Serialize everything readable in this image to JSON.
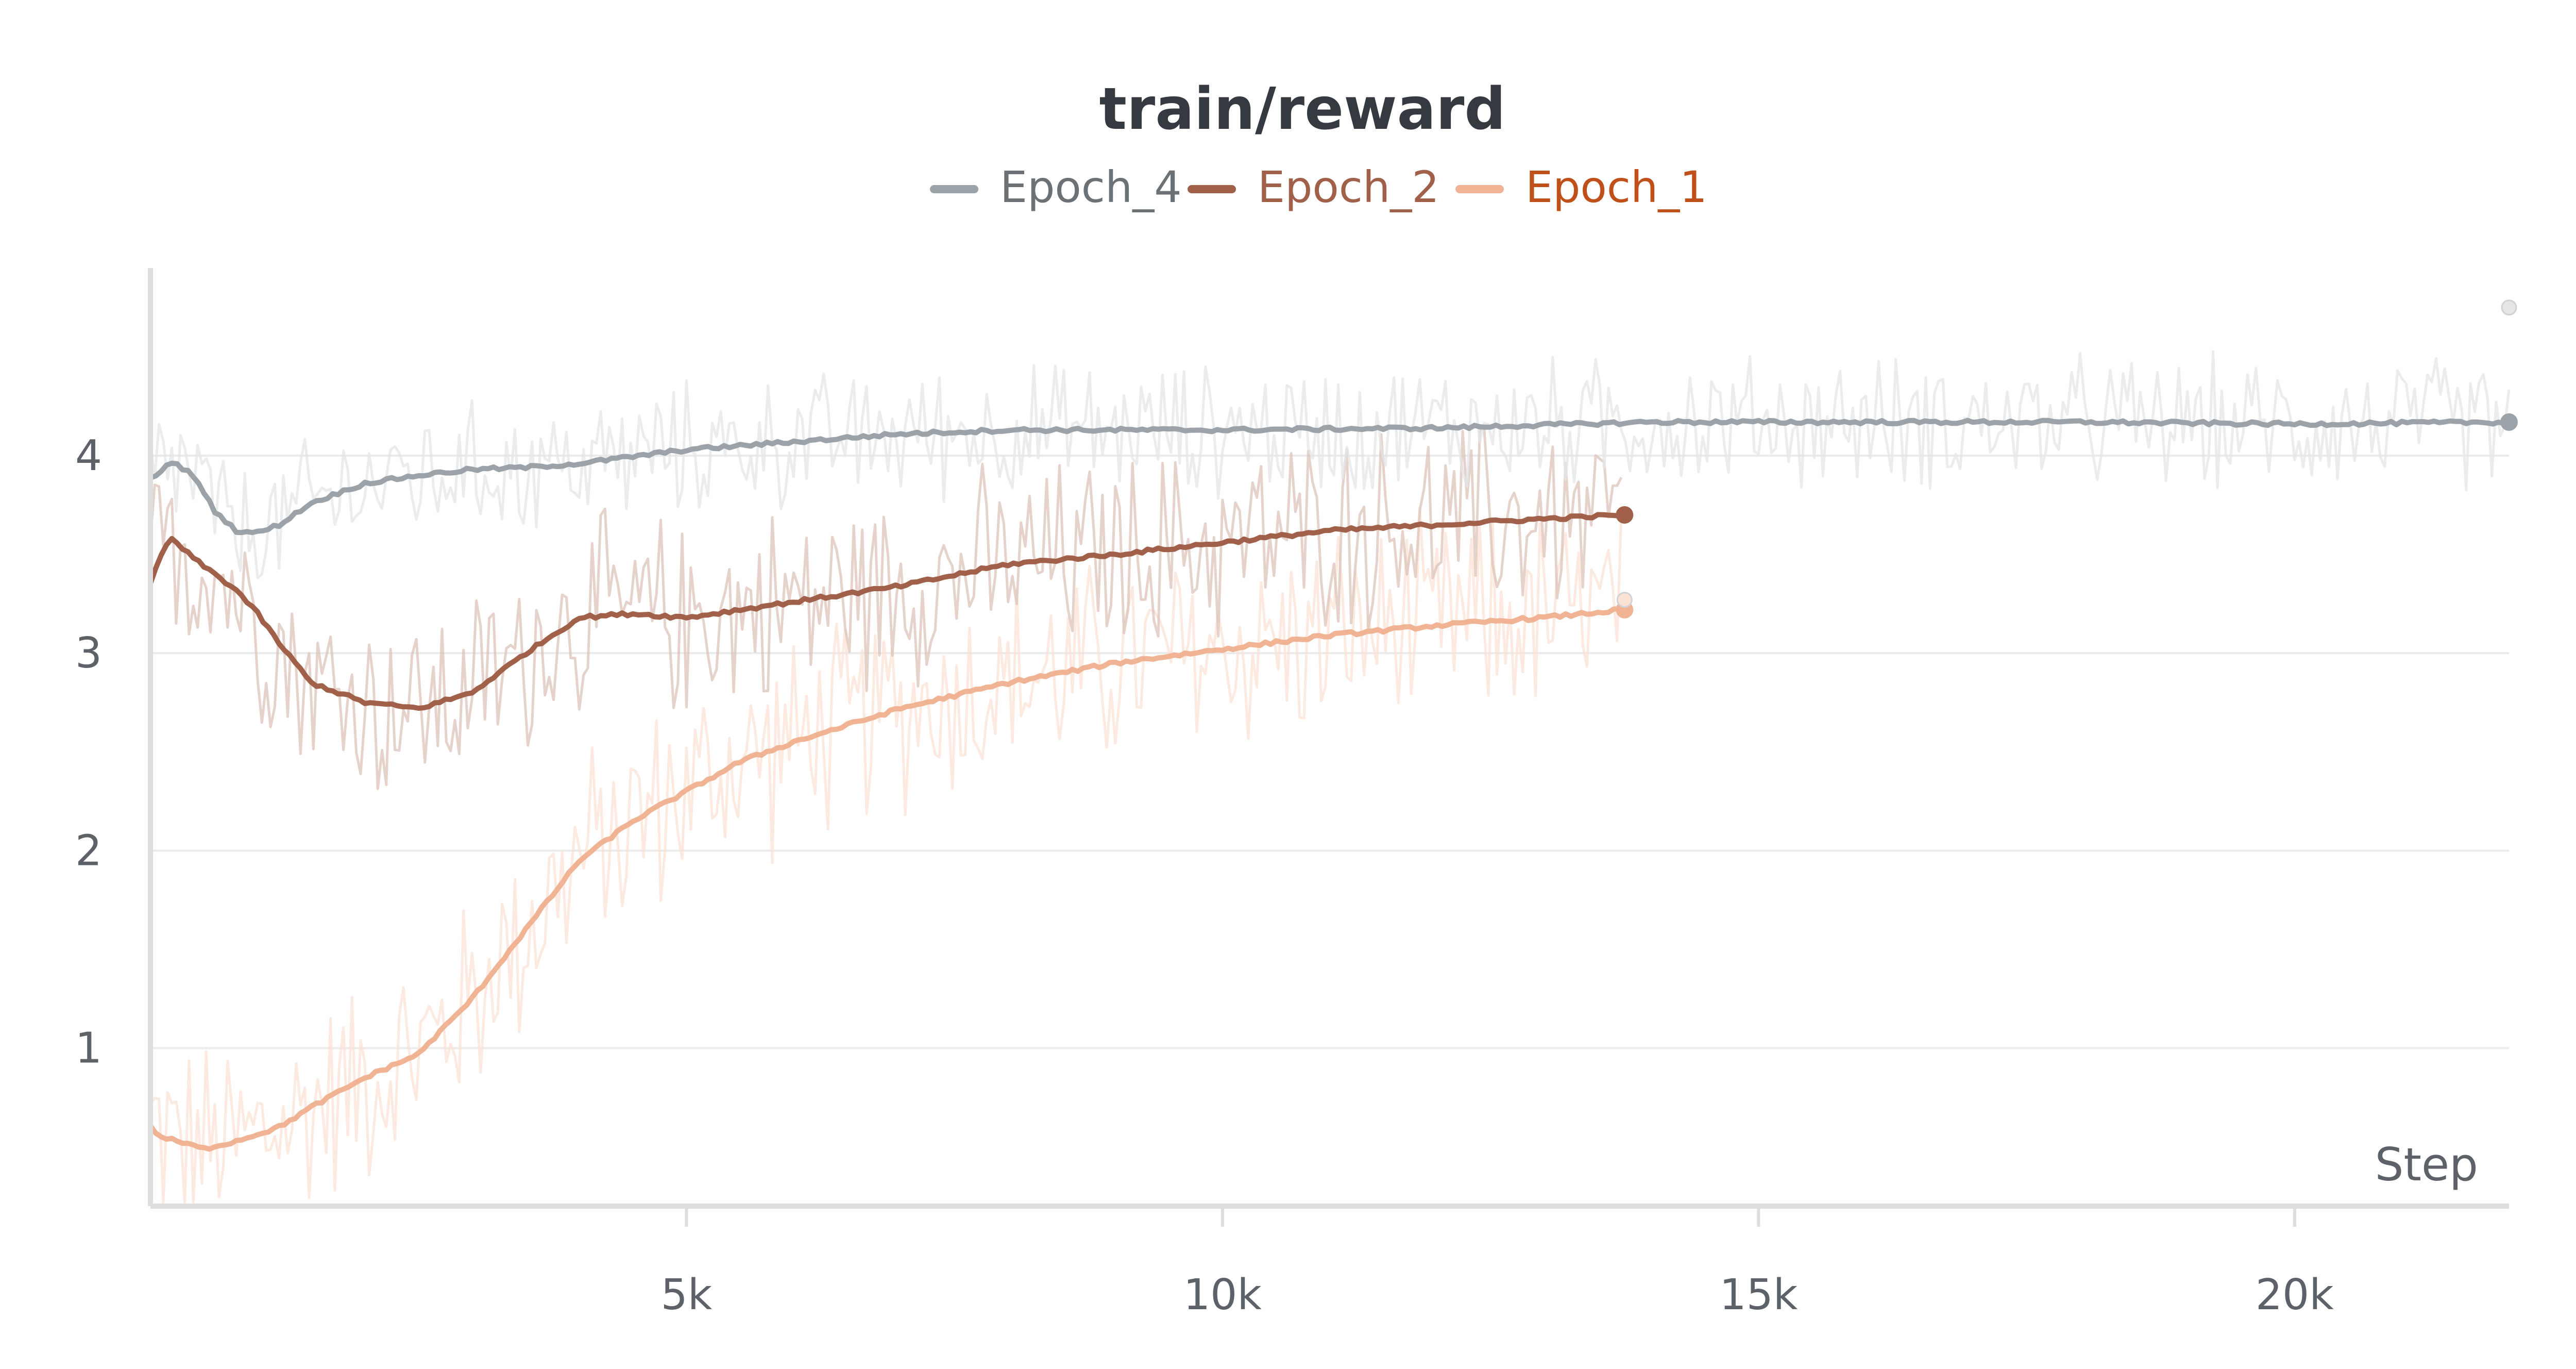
{
  "chart_data": {
    "type": "line",
    "title": "train/reward",
    "xlabel": "Step",
    "ylabel": "",
    "xlim": [
      0,
      22000
    ],
    "ylim": [
      0.2,
      4.95
    ],
    "xticks": [
      {
        "value": 5000,
        "label": "5k"
      },
      {
        "value": 10000,
        "label": "10k"
      },
      {
        "value": 15000,
        "label": "15k"
      },
      {
        "value": 20000,
        "label": "20k"
      }
    ],
    "yticks": [
      {
        "value": 1,
        "label": "1"
      },
      {
        "value": 2,
        "label": "2"
      },
      {
        "value": 3,
        "label": "3"
      },
      {
        "value": 4,
        "label": "4"
      }
    ],
    "grid": "horizontal",
    "legend_position": "top-center",
    "series": [
      {
        "name": "Epoch_4",
        "color": "#9ca3a8",
        "raw_color": "#e3e5e7",
        "legend_color": "#6b7175",
        "x": [
          0,
          200,
          400,
          600,
          800,
          1000,
          1200,
          1500,
          2000,
          2500,
          3000,
          3500,
          4000,
          5000,
          6000,
          7000,
          8000,
          10000,
          12000,
          14000,
          15000,
          16000,
          18000,
          20000,
          22000
        ],
        "y": [
          3.88,
          3.97,
          3.9,
          3.72,
          3.62,
          3.61,
          3.65,
          3.76,
          3.86,
          3.9,
          3.93,
          3.94,
          3.96,
          4.03,
          4.07,
          4.11,
          4.13,
          4.13,
          4.14,
          4.17,
          4.17,
          4.17,
          4.17,
          4.16,
          4.17
        ],
        "raw_max": 4.75
      },
      {
        "name": "Epoch_2",
        "color": "#a0604a",
        "raw_color": "#dcc4ba",
        "legend_color": "#a0604a",
        "x": [
          0,
          100,
          200,
          400,
          600,
          800,
          1000,
          1200,
          1500,
          2000,
          2500,
          3000,
          3500,
          4000,
          4500,
          5000,
          6000,
          7000,
          8000,
          9000,
          10000,
          11000,
          12000,
          13000,
          13750
        ],
        "y": [
          3.35,
          3.5,
          3.58,
          3.48,
          3.4,
          3.32,
          3.2,
          3.05,
          2.85,
          2.75,
          2.72,
          2.8,
          3.0,
          3.18,
          3.2,
          3.18,
          3.26,
          3.34,
          3.45,
          3.5,
          3.56,
          3.62,
          3.65,
          3.68,
          3.7
        ],
        "raw_max": 4.6
      },
      {
        "name": "Epoch_1",
        "color": "#f0b494",
        "raw_color": "#fbe2d4",
        "legend_color": "#c0501a",
        "x": [
          0,
          100,
          300,
          500,
          800,
          1200,
          1500,
          2000,
          2500,
          3000,
          3500,
          4000,
          4500,
          5000,
          5500,
          6000,
          7000,
          8000,
          9000,
          10000,
          11000,
          12000,
          13000,
          13750
        ],
        "y": [
          0.6,
          0.55,
          0.52,
          0.49,
          0.53,
          0.6,
          0.7,
          0.85,
          0.97,
          1.25,
          1.6,
          1.95,
          2.15,
          2.3,
          2.45,
          2.55,
          2.72,
          2.85,
          2.95,
          3.02,
          3.09,
          3.14,
          3.18,
          3.22
        ],
        "raw_max": 3.8
      }
    ]
  }
}
